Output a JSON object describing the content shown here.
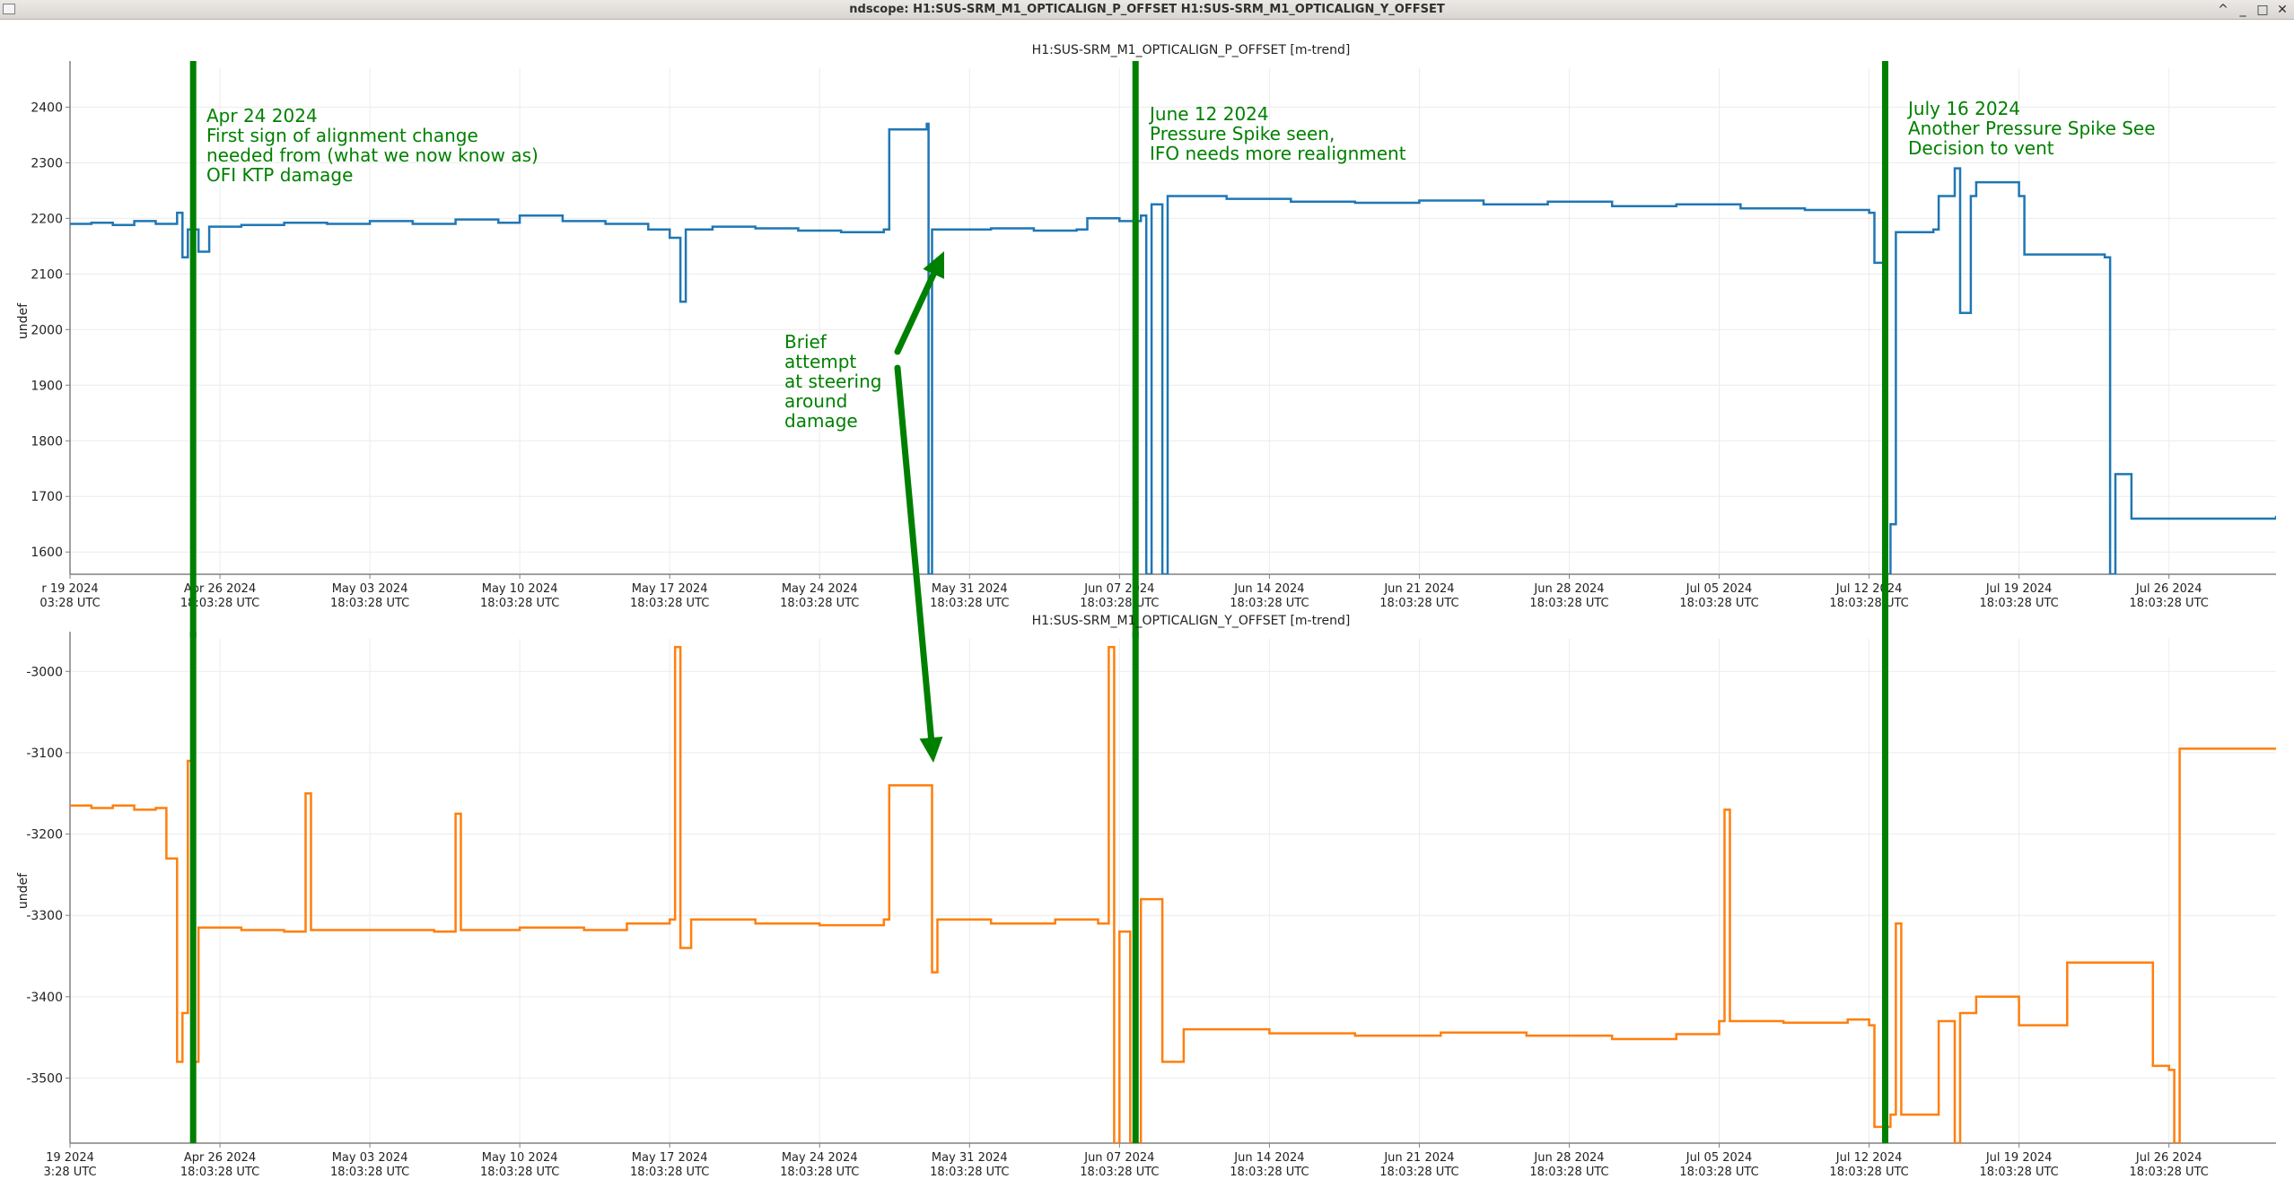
{
  "window": {
    "title": "ndscope: H1:SUS-SRM_M1_OPTICALIGN_P_OFFSET H1:SUS-SRM_M1_OPTICALIGN_Y_OFFSET",
    "controls": [
      "^",
      "_",
      "□",
      "✕"
    ]
  },
  "colors": {
    "p_series": "#1f77b4",
    "y_series": "#ff7f0e",
    "annotation": "#008000",
    "grid": "#ececec",
    "axis": "#808080"
  },
  "chart_data": [
    {
      "type": "line",
      "title": "H1:SUS-SRM_M1_OPTICALIGN_P_OFFSET [m-trend]",
      "ylabel": "undef",
      "xlim": [
        "2024-04-19",
        "2024-07-31"
      ],
      "ylim": [
        1560,
        2470
      ],
      "yticks": [
        1600,
        1700,
        1800,
        1900,
        2000,
        2100,
        2200,
        2300,
        2400
      ],
      "xticks": [
        {
          "date": "2024-04-19",
          "l1": "r 19 2024",
          "l2": "03:28 UTC"
        },
        {
          "date": "2024-04-26",
          "l1": "Apr 26 2024",
          "l2": "18:03:28 UTC"
        },
        {
          "date": "2024-05-03",
          "l1": "May 03 2024",
          "l2": "18:03:28 UTC"
        },
        {
          "date": "2024-05-10",
          "l1": "May 10 2024",
          "l2": "18:03:28 UTC"
        },
        {
          "date": "2024-05-17",
          "l1": "May 17 2024",
          "l2": "18:03:28 UTC"
        },
        {
          "date": "2024-05-24",
          "l1": "May 24 2024",
          "l2": "18:03:28 UTC"
        },
        {
          "date": "2024-05-31",
          "l1": "May 31 2024",
          "l2": "18:03:28 UTC"
        },
        {
          "date": "2024-06-07",
          "l1": "Jun 07 2024",
          "l2": "18:03:28 UTC"
        },
        {
          "date": "2024-06-14",
          "l1": "Jun 14 2024",
          "l2": "18:03:28 UTC"
        },
        {
          "date": "2024-06-21",
          "l1": "Jun 21 2024",
          "l2": "18:03:28 UTC"
        },
        {
          "date": "2024-06-28",
          "l1": "Jun 28 2024",
          "l2": "18:03:28 UTC"
        },
        {
          "date": "2024-07-05",
          "l1": "Jul 05 2024",
          "l2": "18:03:28 UTC"
        },
        {
          "date": "2024-07-12",
          "l1": "Jul 12 2024",
          "l2": "18:03:28 UTC"
        },
        {
          "date": "2024-07-19",
          "l1": "Jul 19 2024",
          "l2": "18:03:28 UTC"
        },
        {
          "date": "2024-07-26",
          "l1": "Jul 26 2024",
          "l2": "18:03:28 UTC"
        }
      ],
      "grid": true,
      "series": [
        {
          "color": "#1f77b4",
          "points": [
            [
              "2024-04-19",
              2190
            ],
            [
              "2024-04-20",
              2192
            ],
            [
              "2024-04-21",
              2188
            ],
            [
              "2024-04-22",
              2195
            ],
            [
              "2024-04-23",
              2190
            ],
            [
              "2024-04-24",
              2210
            ],
            [
              "2024-04-24T06",
              2130
            ],
            [
              "2024-04-24T12",
              2180
            ],
            [
              "2024-04-25",
              2140
            ],
            [
              "2024-04-25T12",
              2185
            ],
            [
              "2024-04-27",
              2188
            ],
            [
              "2024-04-29",
              2192
            ],
            [
              "2024-05-01",
              2190
            ],
            [
              "2024-05-03",
              2195
            ],
            [
              "2024-05-05",
              2190
            ],
            [
              "2024-05-07",
              2198
            ],
            [
              "2024-05-09",
              2192
            ],
            [
              "2024-05-10",
              2205
            ],
            [
              "2024-05-12",
              2195
            ],
            [
              "2024-05-14",
              2190
            ],
            [
              "2024-05-16",
              2180
            ],
            [
              "2024-05-17",
              2165
            ],
            [
              "2024-05-17T12",
              2050
            ],
            [
              "2024-05-17T18",
              2180
            ],
            [
              "2024-05-19",
              2185
            ],
            [
              "2024-05-21",
              2182
            ],
            [
              "2024-05-23",
              2178
            ],
            [
              "2024-05-25",
              2175
            ],
            [
              "2024-05-27",
              2180
            ],
            [
              "2024-05-27T06",
              2360
            ],
            [
              "2024-05-29",
              2370
            ],
            [
              "2024-05-29T02",
              1560
            ],
            [
              "2024-05-29T06",
              2180
            ],
            [
              "2024-06-01",
              2182
            ],
            [
              "2024-06-03",
              2178
            ],
            [
              "2024-06-05",
              2180
            ],
            [
              "2024-06-05T12",
              2200
            ],
            [
              "2024-06-07",
              2195
            ],
            [
              "2024-06-08",
              2205
            ],
            [
              "2024-06-08T06",
              1560
            ],
            [
              "2024-06-08T12",
              2225
            ],
            [
              "2024-06-09",
              1560
            ],
            [
              "2024-06-09T06",
              2240
            ],
            [
              "2024-06-12",
              2235
            ],
            [
              "2024-06-15",
              2230
            ],
            [
              "2024-06-18",
              2228
            ],
            [
              "2024-06-21",
              2232
            ],
            [
              "2024-06-24",
              2225
            ],
            [
              "2024-06-27",
              2230
            ],
            [
              "2024-06-30",
              2222
            ],
            [
              "2024-07-03",
              2225
            ],
            [
              "2024-07-06",
              2218
            ],
            [
              "2024-07-09",
              2215
            ],
            [
              "2024-07-12",
              2210
            ],
            [
              "2024-07-12T06",
              2120
            ],
            [
              "2024-07-12T18",
              1560
            ],
            [
              "2024-07-13",
              1650
            ],
            [
              "2024-07-13T06",
              2175
            ],
            [
              "2024-07-15",
              2180
            ],
            [
              "2024-07-15T06",
              2240
            ],
            [
              "2024-07-16",
              2290
            ],
            [
              "2024-07-16T06",
              2030
            ],
            [
              "2024-07-16T18",
              2240
            ],
            [
              "2024-07-17",
              2265
            ],
            [
              "2024-07-19",
              2240
            ],
            [
              "2024-07-19T06",
              2135
            ],
            [
              "2024-07-22",
              2135
            ],
            [
              "2024-07-23",
              2130
            ],
            [
              "2024-07-23T06",
              1560
            ],
            [
              "2024-07-23T12",
              1740
            ],
            [
              "2024-07-24",
              1740
            ],
            [
              "2024-07-24T06",
              1660
            ],
            [
              "2024-07-31",
              1665
            ]
          ]
        }
      ]
    },
    {
      "type": "line",
      "title": "H1:SUS-SRM_M1_OPTICALIGN_Y_OFFSET [m-trend]",
      "ylabel": "undef",
      "xlim": [
        "2024-04-19",
        "2024-07-31"
      ],
      "ylim": [
        -3580,
        -2960
      ],
      "yticks": [
        -3500,
        -3400,
        -3300,
        -3200,
        -3100,
        -3000
      ],
      "xticks": [
        {
          "date": "2024-04-19",
          "l1": "19 2024",
          "l2": "3:28 UTC"
        },
        {
          "date": "2024-04-26",
          "l1": "Apr 26 2024",
          "l2": "18:03:28 UTC"
        },
        {
          "date": "2024-05-03",
          "l1": "May 03 2024",
          "l2": "18:03:28 UTC"
        },
        {
          "date": "2024-05-10",
          "l1": "May 10 2024",
          "l2": "18:03:28 UTC"
        },
        {
          "date": "2024-05-17",
          "l1": "May 17 2024",
          "l2": "18:03:28 UTC"
        },
        {
          "date": "2024-05-24",
          "l1": "May 24 2024",
          "l2": "18:03:28 UTC"
        },
        {
          "date": "2024-05-31",
          "l1": "May 31 2024",
          "l2": "18:03:28 UTC"
        },
        {
          "date": "2024-06-07",
          "l1": "Jun 07 2024",
          "l2": "18:03:28 UTC"
        },
        {
          "date": "2024-06-14",
          "l1": "Jun 14 2024",
          "l2": "18:03:28 UTC"
        },
        {
          "date": "2024-06-21",
          "l1": "Jun 21 2024",
          "l2": "18:03:28 UTC"
        },
        {
          "date": "2024-06-28",
          "l1": "Jun 28 2024",
          "l2": "18:03:28 UTC"
        },
        {
          "date": "2024-07-05",
          "l1": "Jul 05 2024",
          "l2": "18:03:28 UTC"
        },
        {
          "date": "2024-07-12",
          "l1": "Jul 12 2024",
          "l2": "18:03:28 UTC"
        },
        {
          "date": "2024-07-19",
          "l1": "Jul 19 2024",
          "l2": "18:03:28 UTC"
        },
        {
          "date": "2024-07-26",
          "l1": "Jul 26 2024",
          "l2": "18:03:28 UTC"
        }
      ],
      "grid": true,
      "series": [
        {
          "color": "#ff7f0e",
          "points": [
            [
              "2024-04-19",
              -3165
            ],
            [
              "2024-04-20",
              -3168
            ],
            [
              "2024-04-21",
              -3165
            ],
            [
              "2024-04-22",
              -3170
            ],
            [
              "2024-04-23",
              -3168
            ],
            [
              "2024-04-23T12",
              -3230
            ],
            [
              "2024-04-24",
              -3480
            ],
            [
              "2024-04-24T06",
              -3420
            ],
            [
              "2024-04-24T12",
              -3110
            ],
            [
              "2024-04-24T18",
              -3480
            ],
            [
              "2024-04-25",
              -3315
            ],
            [
              "2024-04-27",
              -3318
            ],
            [
              "2024-04-29",
              -3320
            ],
            [
              "2024-04-30",
              -3150
            ],
            [
              "2024-04-30T06",
              -3318
            ],
            [
              "2024-05-03",
              -3318
            ],
            [
              "2024-05-06",
              -3320
            ],
            [
              "2024-05-07",
              -3175
            ],
            [
              "2024-05-07T06",
              -3318
            ],
            [
              "2024-05-10",
              -3315
            ],
            [
              "2024-05-13",
              -3318
            ],
            [
              "2024-05-15",
              -3310
            ],
            [
              "2024-05-17",
              -3305
            ],
            [
              "2024-05-17T06",
              -2970
            ],
            [
              "2024-05-17T12",
              -3340
            ],
            [
              "2024-05-18",
              -3305
            ],
            [
              "2024-05-21",
              -3310
            ],
            [
              "2024-05-24",
              -3312
            ],
            [
              "2024-05-27",
              -3305
            ],
            [
              "2024-05-27T06",
              -3140
            ],
            [
              "2024-05-29",
              -3140
            ],
            [
              "2024-05-29T06",
              -3370
            ],
            [
              "2024-05-29T12",
              -3305
            ],
            [
              "2024-06-01",
              -3310
            ],
            [
              "2024-06-04",
              -3305
            ],
            [
              "2024-06-06",
              -3310
            ],
            [
              "2024-06-06T12",
              -2970
            ],
            [
              "2024-06-06T18",
              -3580
            ],
            [
              "2024-06-07",
              -3320
            ],
            [
              "2024-06-07T12",
              -3580
            ],
            [
              "2024-06-08",
              -3280
            ],
            [
              "2024-06-09",
              -3480
            ],
            [
              "2024-06-10",
              -3440
            ],
            [
              "2024-06-14",
              -3445
            ],
            [
              "2024-06-18",
              -3448
            ],
            [
              "2024-06-22",
              -3444
            ],
            [
              "2024-06-26",
              -3448
            ],
            [
              "2024-06-30",
              -3452
            ],
            [
              "2024-07-03",
              -3446
            ],
            [
              "2024-07-05",
              -3430
            ],
            [
              "2024-07-05T06",
              -3170
            ],
            [
              "2024-07-05T12",
              -3430
            ],
            [
              "2024-07-08",
              -3432
            ],
            [
              "2024-07-11",
              -3428
            ],
            [
              "2024-07-12",
              -3435
            ],
            [
              "2024-07-12T06",
              -3560
            ],
            [
              "2024-07-13",
              -3545
            ],
            [
              "2024-07-13T06",
              -3310
            ],
            [
              "2024-07-13T12",
              -3545
            ],
            [
              "2024-07-15",
              -3545
            ],
            [
              "2024-07-15T06",
              -3430
            ],
            [
              "2024-07-16",
              -3580
            ],
            [
              "2024-07-16T06",
              -3420
            ],
            [
              "2024-07-17",
              -3400
            ],
            [
              "2024-07-19",
              -3435
            ],
            [
              "2024-07-21",
              -3435
            ],
            [
              "2024-07-21T06",
              -3358
            ],
            [
              "2024-07-25",
              -3358
            ],
            [
              "2024-07-25T06",
              -3485
            ],
            [
              "2024-07-26",
              -3490
            ],
            [
              "2024-07-26T06",
              -3580
            ],
            [
              "2024-07-26T12",
              -3095
            ],
            [
              "2024-07-31",
              -3095
            ]
          ]
        }
      ]
    }
  ],
  "annotations": {
    "markers": [
      {
        "date": "2024-04-24T18",
        "label": "Apr 24 2024 marker"
      },
      {
        "date": "2024-06-07T18",
        "label": "June 12 2024 marker"
      },
      {
        "date": "2024-07-12T18",
        "label": "July 16 2024 marker"
      }
    ],
    "texts": [
      {
        "id": "apr24",
        "lines": [
          "Apr 24 2024",
          "First sign of alignment change",
          "needed from (what we now know as)",
          "OFI KTP damage"
        ]
      },
      {
        "id": "jun12",
        "lines": [
          "June 12 2024",
          "Pressure Spike seen,",
          "IFO needs more realignment"
        ]
      },
      {
        "id": "jul16",
        "lines": [
          "July 16 2024",
          "Another Pressure Spike See",
          "Decision to vent"
        ]
      },
      {
        "id": "brief",
        "lines": [
          "Brief",
          "attempt",
          "at steering",
          "around",
          "damage"
        ]
      }
    ]
  }
}
